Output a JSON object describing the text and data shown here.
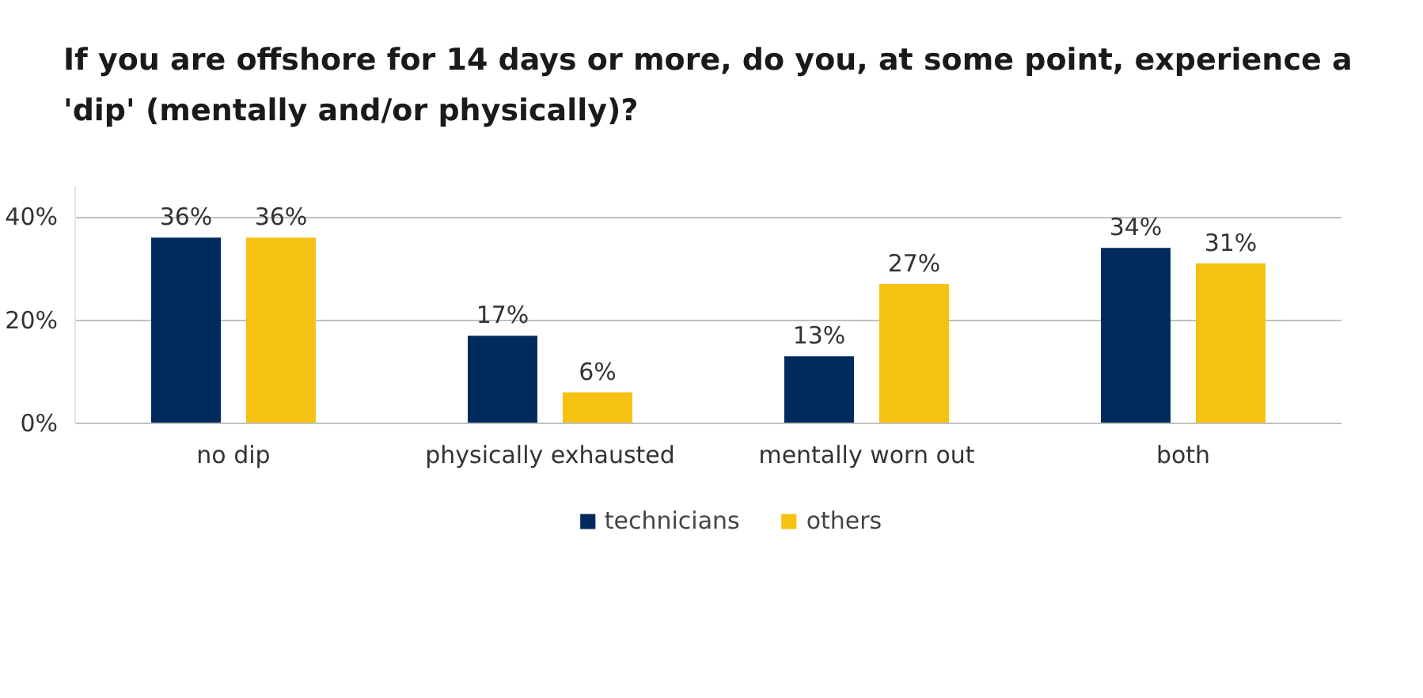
{
  "chart_data": {
    "type": "bar",
    "title": "If you are offshore for 14 days or more, do you, at some point, experience a 'dip' (mentally and/or physically)?",
    "categories": [
      "no dip",
      "physically exhausted",
      "mentally worn out",
      "both"
    ],
    "series": [
      {
        "name": "technicians",
        "color": "#002b5c",
        "values": [
          36,
          17,
          13,
          34
        ],
        "value_labels": [
          "36%",
          "17%",
          "13%",
          "34%"
        ]
      },
      {
        "name": "others",
        "color": "#f5c211",
        "values": [
          36,
          6,
          27,
          31
        ],
        "value_labels": [
          "36%",
          "6%",
          "27%",
          "31%"
        ]
      }
    ],
    "ylim": [
      0,
      46
    ],
    "yticks": [
      {
        "value": 0,
        "label": "0%"
      },
      {
        "value": 20,
        "label": "20%"
      },
      {
        "value": 40,
        "label": "40%"
      }
    ],
    "grid": "y",
    "legend": "bottom"
  }
}
